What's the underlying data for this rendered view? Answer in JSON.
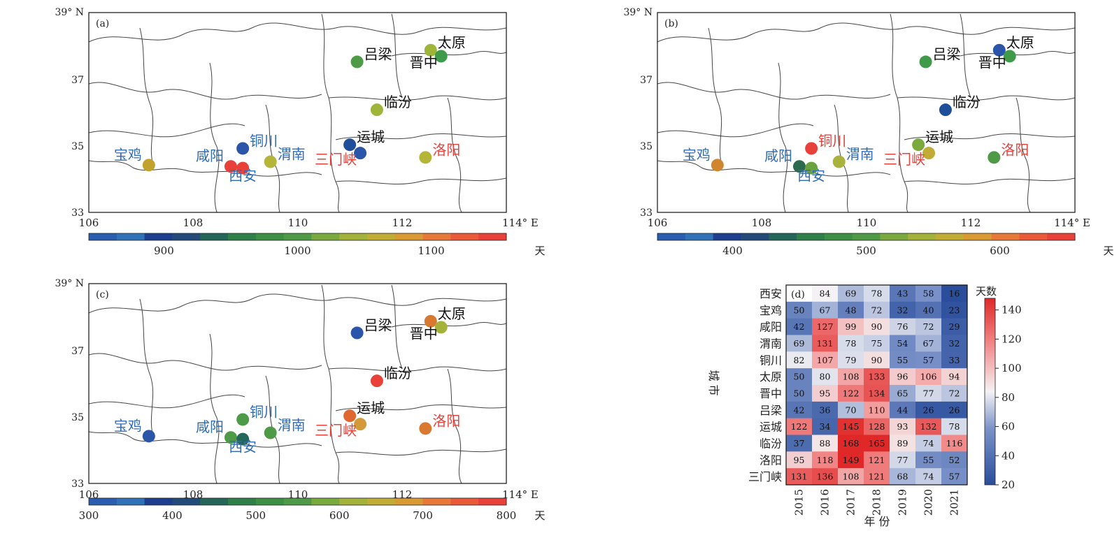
{
  "panels": [
    {
      "id": "a",
      "label": "(a)",
      "lat_top_label": "39° N",
      "lon_end_label": "114° E",
      "cities": [
        {
          "name": "宝鸡",
          "lon": 107.15,
          "lat": 34.42,
          "label_color": "#2f6cb5",
          "label_side": "above-left",
          "color": "#c2a22e"
        },
        {
          "name": "咸阳",
          "lon": 108.72,
          "lat": 34.38,
          "label_color": "#2f6cb5",
          "label_side": "above-left",
          "color": "#e8413a"
        },
        {
          "name": "西安",
          "lon": 108.95,
          "lat": 34.33,
          "label_color": "#2f6cb5",
          "label_side": "below",
          "color": "#e8413a"
        },
        {
          "name": "铜川",
          "lon": 108.95,
          "lat": 34.92,
          "label_color": "#2f6cb5",
          "label_side": "right",
          "color": "#2a55a8"
        },
        {
          "name": "渭南",
          "lon": 109.48,
          "lat": 34.52,
          "label_color": "#2f6cb5",
          "label_side": "right",
          "color": "#b5b53a"
        },
        {
          "name": "太原",
          "lon": 112.55,
          "lat": 37.87,
          "label_color": "#111111",
          "label_side": "right",
          "color": "#9fb53a"
        },
        {
          "name": "晋中",
          "lon": 112.75,
          "lat": 37.69,
          "label_color": "#111111",
          "label_side": "below-left",
          "color": "#3f9a4a"
        },
        {
          "name": "吕梁",
          "lon": 111.14,
          "lat": 37.52,
          "label_color": "#111111",
          "label_side": "right",
          "color": "#4f9a46"
        },
        {
          "name": "临汾",
          "lon": 111.52,
          "lat": 36.08,
          "label_color": "#111111",
          "label_side": "right",
          "color": "#9fb53a"
        },
        {
          "name": "运城",
          "lon": 111.0,
          "lat": 35.03,
          "label_color": "#111111",
          "label_side": "right",
          "color": "#1f4f9a"
        },
        {
          "name": "三门峡",
          "lon": 111.2,
          "lat": 34.78,
          "label_color": "#e8413a",
          "label_side": "below-left",
          "color": "#2a55a8"
        },
        {
          "name": "洛阳",
          "lon": 112.45,
          "lat": 34.65,
          "label_color": "#e8413a",
          "label_side": "right",
          "color": "#b5b53a"
        }
      ],
      "colorbar": {
        "colors": [
          "#2a5db0",
          "#2f72b8",
          "#1d3d8f",
          "#234b7a",
          "#24675a",
          "#2f7f49",
          "#3d8f44",
          "#4f9a46",
          "#7aaa3d",
          "#a3b23a",
          "#c1ac35",
          "#d99a33",
          "#e8783a",
          "#ea5a38",
          "#e8413a"
        ],
        "ticks": [
          "900",
          "1000",
          "1100"
        ],
        "tick_positions": [
          0.18,
          0.5,
          0.82
        ],
        "unit": "天"
      }
    },
    {
      "id": "b",
      "label": "(b)",
      "lat_top_label": "39° N",
      "lon_end_label": "114° E",
      "cities": [
        {
          "name": "宝鸡",
          "lon": 107.15,
          "lat": 34.42,
          "label_color": "#2f6cb5",
          "label_side": "above-left",
          "color": "#d0862f"
        },
        {
          "name": "咸阳",
          "lon": 108.72,
          "lat": 34.38,
          "label_color": "#2f6cb5",
          "label_side": "above-left",
          "color": "#2b6a4f"
        },
        {
          "name": "西安",
          "lon": 108.95,
          "lat": 34.33,
          "label_color": "#2f6cb5",
          "label_side": "below",
          "color": "#6aa23e"
        },
        {
          "name": "铜川",
          "lon": 108.95,
          "lat": 34.92,
          "label_color": "#e8413a",
          "label_side": "right",
          "color": "#e8413a"
        },
        {
          "name": "渭南",
          "lon": 109.48,
          "lat": 34.52,
          "label_color": "#2f6cb5",
          "label_side": "right",
          "color": "#a9b23a"
        },
        {
          "name": "太原",
          "lon": 112.55,
          "lat": 37.87,
          "label_color": "#111111",
          "label_side": "right",
          "color": "#2a55a8"
        },
        {
          "name": "晋中",
          "lon": 112.75,
          "lat": 37.69,
          "label_color": "#111111",
          "label_side": "below-left",
          "color": "#3f9a4a"
        },
        {
          "name": "吕梁",
          "lon": 111.14,
          "lat": 37.52,
          "label_color": "#111111",
          "label_side": "right",
          "color": "#3f9a4a"
        },
        {
          "name": "临汾",
          "lon": 111.52,
          "lat": 36.08,
          "label_color": "#111111",
          "label_side": "right",
          "color": "#1f4f9a"
        },
        {
          "name": "运城",
          "lon": 111.0,
          "lat": 35.03,
          "label_color": "#111111",
          "label_side": "right",
          "color": "#7aaa3d"
        },
        {
          "name": "三门峡",
          "lon": 111.2,
          "lat": 34.78,
          "label_color": "#e8413a",
          "label_side": "below-left",
          "color": "#c1ac35"
        },
        {
          "name": "洛阳",
          "lon": 112.45,
          "lat": 34.65,
          "label_color": "#e8413a",
          "label_side": "right",
          "color": "#4f9a46"
        }
      ],
      "colorbar": {
        "colors": [
          "#2a5db0",
          "#2f72b8",
          "#1d3d8f",
          "#234b7a",
          "#24675a",
          "#2f7f49",
          "#3d8f44",
          "#4f9a46",
          "#7aaa3d",
          "#a3b23a",
          "#c1ac35",
          "#d99a33",
          "#e8783a",
          "#ea5a38",
          "#e8413a"
        ],
        "ticks": [
          "400",
          "500",
          "600"
        ],
        "tick_positions": [
          0.18,
          0.5,
          0.82
        ],
        "unit": "天"
      }
    },
    {
      "id": "c",
      "label": "(c)",
      "lat_top_label": "39° N",
      "lon_end_label": "114° E",
      "cities": [
        {
          "name": "宝鸡",
          "lon": 107.15,
          "lat": 34.42,
          "label_color": "#2f6cb5",
          "label_side": "above-left",
          "color": "#2a55a8"
        },
        {
          "name": "咸阳",
          "lon": 108.72,
          "lat": 34.38,
          "label_color": "#2f6cb5",
          "label_side": "above-left",
          "color": "#4f9a46"
        },
        {
          "name": "西安",
          "lon": 108.95,
          "lat": 34.33,
          "label_color": "#2f6cb5",
          "label_side": "below",
          "color": "#24675a"
        },
        {
          "name": "铜川",
          "lon": 108.95,
          "lat": 34.92,
          "label_color": "#2f6cb5",
          "label_side": "right",
          "color": "#4f9a46"
        },
        {
          "name": "渭南",
          "lon": 109.48,
          "lat": 34.52,
          "label_color": "#2f6cb5",
          "label_side": "right",
          "color": "#4f9a46"
        },
        {
          "name": "太原",
          "lon": 112.55,
          "lat": 37.87,
          "label_color": "#111111",
          "label_side": "right",
          "color": "#d9782f"
        },
        {
          "name": "晋中",
          "lon": 112.75,
          "lat": 37.69,
          "label_color": "#111111",
          "label_side": "below-left",
          "color": "#a3b23a"
        },
        {
          "name": "吕梁",
          "lon": 111.14,
          "lat": 37.52,
          "label_color": "#111111",
          "label_side": "right",
          "color": "#2a55a8"
        },
        {
          "name": "临汾",
          "lon": 111.52,
          "lat": 36.08,
          "label_color": "#111111",
          "label_side": "right",
          "color": "#e8413a"
        },
        {
          "name": "运城",
          "lon": 111.0,
          "lat": 35.03,
          "label_color": "#111111",
          "label_side": "right",
          "color": "#e0672f"
        },
        {
          "name": "三门峡",
          "lon": 111.2,
          "lat": 34.78,
          "label_color": "#e8413a",
          "label_side": "below-left",
          "color": "#d39a3a"
        },
        {
          "name": "洛阳",
          "lon": 112.45,
          "lat": 34.65,
          "label_color": "#e8413a",
          "label_side": "right",
          "color": "#d9782f"
        }
      ],
      "colorbar": {
        "colors": [
          "#2a5db0",
          "#2f72b8",
          "#1d3d8f",
          "#234b7a",
          "#24675a",
          "#2f7f49",
          "#3d8f44",
          "#4f9a46",
          "#7aaa3d",
          "#a3b23a",
          "#c1ac35",
          "#d99a33",
          "#e8783a",
          "#ea5a38",
          "#e8413a"
        ],
        "ticks": [
          "300",
          "400",
          "500",
          "600",
          "700",
          "800"
        ],
        "tick_positions": [
          0,
          0.2,
          0.4,
          0.6,
          0.8,
          1
        ],
        "unit": "天"
      }
    }
  ],
  "map_axes": {
    "x_ticks": [
      "106",
      "108",
      "110",
      "112"
    ],
    "y_ticks": [
      "37",
      "35",
      "33"
    ]
  },
  "chart_data": {
    "type": "heatmap",
    "panel_label": "(d)",
    "ylabel": "城 市",
    "xlabel": "年 份",
    "colorbar_title": "天数",
    "colorbar_ticks": [
      "140",
      "120",
      "100",
      "80",
      "60",
      "40",
      "20"
    ],
    "vmin": 20,
    "vmax": 148,
    "x": [
      "2015",
      "2016",
      "2017",
      "2018",
      "2019",
      "2020",
      "2021"
    ],
    "y": [
      "西安",
      "宝鸡",
      "咸阳",
      "渭南",
      "铜川",
      "太原",
      "晋中",
      "吕梁",
      "运城",
      "临汾",
      "洛阳",
      "三门峡"
    ],
    "values": [
      [
        null,
        84,
        69,
        78,
        43,
        58,
        16
      ],
      [
        50,
        67,
        48,
        72,
        32,
        40,
        23
      ],
      [
        42,
        127,
        99,
        90,
        76,
        72,
        29
      ],
      [
        69,
        131,
        78,
        75,
        54,
        67,
        32
      ],
      [
        82,
        107,
        79,
        90,
        55,
        57,
        33
      ],
      [
        50,
        80,
        108,
        133,
        96,
        106,
        94
      ],
      [
        50,
        95,
        122,
        134,
        65,
        77,
        72
      ],
      [
        42,
        36,
        70,
        110,
        44,
        26,
        26
      ],
      [
        122,
        34,
        145,
        128,
        93,
        132,
        78
      ],
      [
        37,
        88,
        168,
        165,
        89,
        74,
        116
      ],
      [
        95,
        118,
        149,
        121,
        77,
        55,
        52
      ],
      [
        131,
        136,
        108,
        121,
        68,
        74,
        57
      ]
    ]
  }
}
